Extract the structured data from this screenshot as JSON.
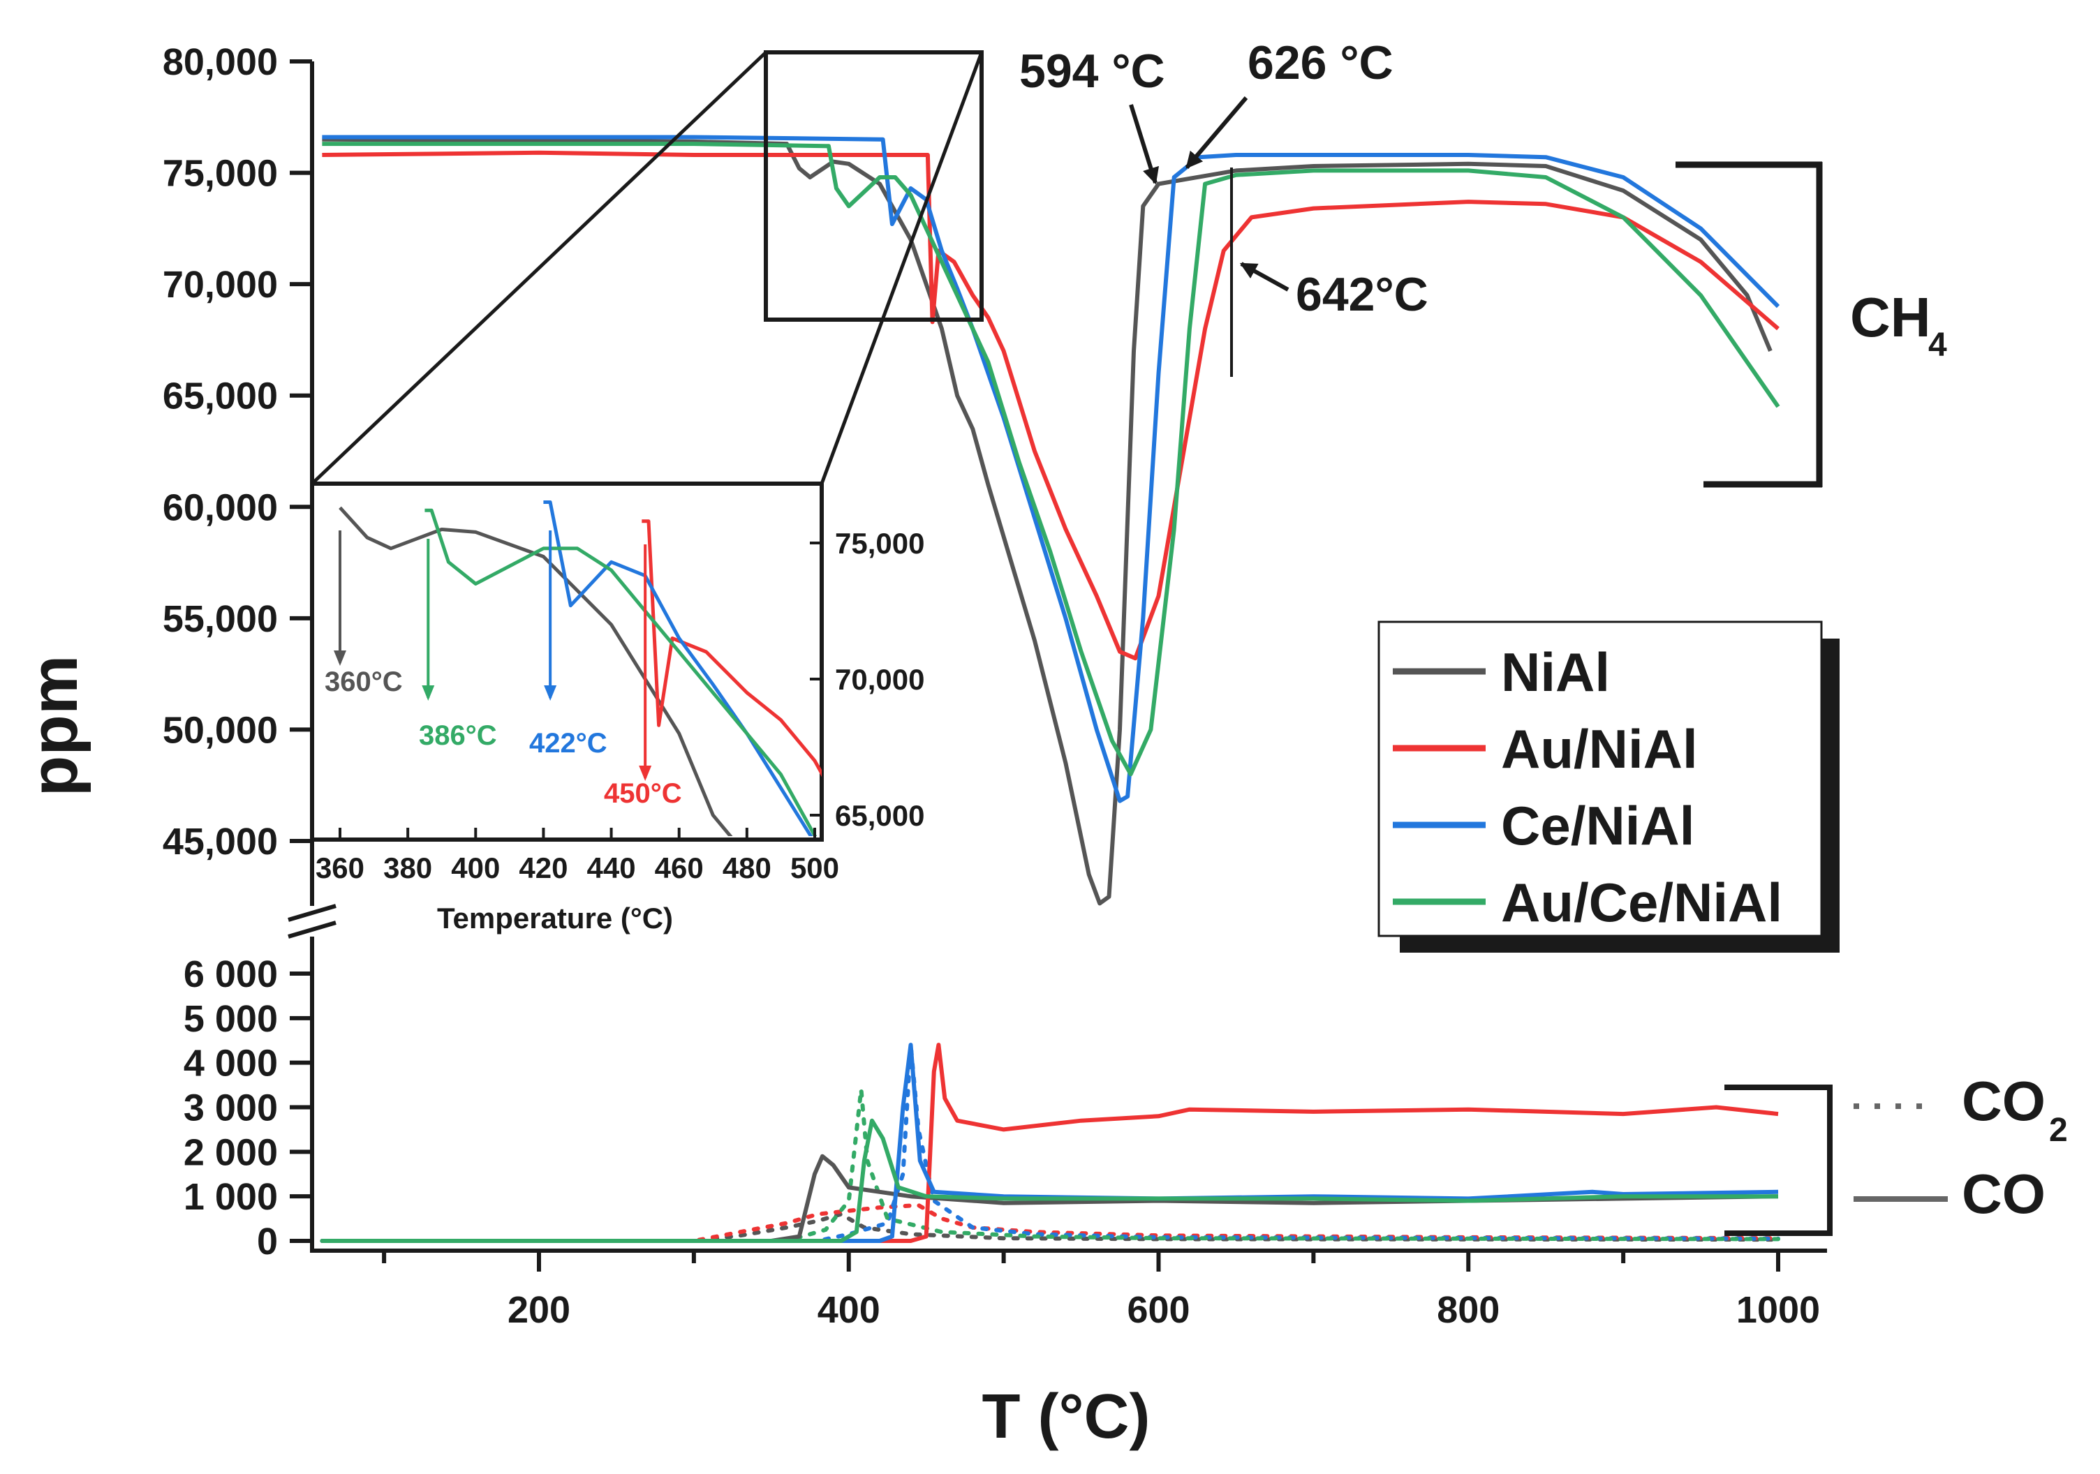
{
  "chart_data": {
    "type": "line",
    "xlabel": "T (°C)",
    "ylabel": "ppm",
    "xlim": [
      60,
      1000
    ],
    "x_ticks": [
      "200",
      "400",
      "600",
      "800",
      "1000"
    ],
    "top_panel": {
      "ylim": [
        45000,
        80000
      ],
      "y_ticks": [
        "45,000",
        "50,000",
        "55,000",
        "60,000",
        "65,000",
        "70,000",
        "75,000",
        "80,000"
      ],
      "label": "CH",
      "label_sub": "4"
    },
    "bottom_panel": {
      "ylim": [
        0,
        6500
      ],
      "y_ticks": [
        "0",
        "1 000",
        "2 000",
        "3 000",
        "4 000",
        "5 000",
        "6 000"
      ],
      "co2_label": "CO",
      "co2_sub": "2",
      "co_label": "CO"
    },
    "annotations": [
      "594 °C",
      "626 °C",
      "642°C"
    ],
    "legend": [
      "NiAl",
      "Au/NiAl",
      "Ce/NiAl",
      "Au/Ce/NiAl"
    ],
    "colors": {
      "NiAl": "#555555",
      "Au/NiAl": "#ee3333",
      "Ce/NiAl": "#2277dd",
      "Au/Ce/NiAl": "#33aa66"
    },
    "series_ch4": [
      {
        "name": "NiAl",
        "points": [
          [
            60,
            76500
          ],
          [
            300,
            76400
          ],
          [
            360,
            76300
          ],
          [
            368,
            75200
          ],
          [
            375,
            74800
          ],
          [
            390,
            75500
          ],
          [
            400,
            75400
          ],
          [
            420,
            74500
          ],
          [
            440,
            72000
          ],
          [
            460,
            68000
          ],
          [
            470,
            65000
          ],
          [
            480,
            63500
          ],
          [
            490,
            61000
          ],
          [
            520,
            54000
          ],
          [
            540,
            48500
          ],
          [
            555,
            43500
          ],
          [
            562,
            42200
          ],
          [
            568,
            42500
          ],
          [
            575,
            50000
          ],
          [
            584,
            67000
          ],
          [
            590,
            73500
          ],
          [
            600,
            74500
          ],
          [
            650,
            75100
          ],
          [
            700,
            75300
          ],
          [
            800,
            75400
          ],
          [
            850,
            75300
          ],
          [
            900,
            74200
          ],
          [
            950,
            72000
          ],
          [
            980,
            69500
          ],
          [
            995,
            67000
          ]
        ]
      },
      {
        "name": "Au/NiAl",
        "points": [
          [
            60,
            75800
          ],
          [
            200,
            75900
          ],
          [
            300,
            75800
          ],
          [
            449,
            75800
          ],
          [
            451,
            75800
          ],
          [
            454,
            68300
          ],
          [
            458,
            71500
          ],
          [
            468,
            71000
          ],
          [
            480,
            69500
          ],
          [
            490,
            68500
          ],
          [
            500,
            67000
          ],
          [
            520,
            62500
          ],
          [
            540,
            59000
          ],
          [
            560,
            56000
          ],
          [
            575,
            53500
          ],
          [
            585,
            53200
          ],
          [
            600,
            56000
          ],
          [
            615,
            62000
          ],
          [
            630,
            68000
          ],
          [
            642,
            71500
          ],
          [
            660,
            73000
          ],
          [
            700,
            73400
          ],
          [
            800,
            73700
          ],
          [
            850,
            73600
          ],
          [
            900,
            73000
          ],
          [
            950,
            71000
          ],
          [
            1000,
            68000
          ]
        ]
      },
      {
        "name": "Ce/NiAl",
        "points": [
          [
            60,
            76600
          ],
          [
            300,
            76600
          ],
          [
            420,
            76500
          ],
          [
            422,
            76500
          ],
          [
            428,
            72700
          ],
          [
            440,
            74300
          ],
          [
            450,
            73800
          ],
          [
            460,
            71500
          ],
          [
            470,
            69800
          ],
          [
            480,
            68000
          ],
          [
            500,
            64000
          ],
          [
            520,
            59500
          ],
          [
            540,
            55000
          ],
          [
            560,
            50000
          ],
          [
            575,
            46800
          ],
          [
            580,
            47000
          ],
          [
            590,
            55000
          ],
          [
            600,
            66000
          ],
          [
            610,
            74800
          ],
          [
            626,
            75700
          ],
          [
            650,
            75800
          ],
          [
            700,
            75800
          ],
          [
            800,
            75800
          ],
          [
            850,
            75700
          ],
          [
            900,
            74800
          ],
          [
            950,
            72500
          ],
          [
            1000,
            69000
          ]
        ]
      },
      {
        "name": "Au/Ce/NiAl",
        "points": [
          [
            60,
            76300
          ],
          [
            300,
            76300
          ],
          [
            385,
            76200
          ],
          [
            387,
            76200
          ],
          [
            392,
            74300
          ],
          [
            400,
            73500
          ],
          [
            420,
            74800
          ],
          [
            430,
            74800
          ],
          [
            440,
            74000
          ],
          [
            450,
            72500
          ],
          [
            470,
            69500
          ],
          [
            490,
            66500
          ],
          [
            510,
            62000
          ],
          [
            530,
            58000
          ],
          [
            550,
            53500
          ],
          [
            570,
            49500
          ],
          [
            582,
            48000
          ],
          [
            595,
            50000
          ],
          [
            610,
            59000
          ],
          [
            620,
            68000
          ],
          [
            630,
            74500
          ],
          [
            650,
            74900
          ],
          [
            700,
            75100
          ],
          [
            800,
            75100
          ],
          [
            850,
            74800
          ],
          [
            900,
            73000
          ],
          [
            950,
            69500
          ],
          [
            1000,
            64500
          ]
        ]
      }
    ],
    "series_co": [
      {
        "name": "NiAl",
        "points": [
          [
            60,
            0
          ],
          [
            350,
            0
          ],
          [
            368,
            100
          ],
          [
            378,
            1500
          ],
          [
            383,
            1900
          ],
          [
            390,
            1700
          ],
          [
            400,
            1200
          ],
          [
            440,
            1000
          ],
          [
            500,
            850
          ],
          [
            600,
            900
          ],
          [
            700,
            850
          ],
          [
            800,
            900
          ],
          [
            900,
            950
          ],
          [
            1000,
            1000
          ]
        ]
      },
      {
        "name": "Au/NiAl",
        "points": [
          [
            60,
            0
          ],
          [
            440,
            0
          ],
          [
            450,
            100
          ],
          [
            455,
            3800
          ],
          [
            458,
            4400
          ],
          [
            462,
            3200
          ],
          [
            470,
            2700
          ],
          [
            500,
            2500
          ],
          [
            550,
            2700
          ],
          [
            600,
            2800
          ],
          [
            620,
            2950
          ],
          [
            700,
            2900
          ],
          [
            800,
            2950
          ],
          [
            900,
            2850
          ],
          [
            960,
            3000
          ],
          [
            1000,
            2850
          ]
        ]
      },
      {
        "name": "Ce/NiAl",
        "points": [
          [
            60,
            0
          ],
          [
            420,
            0
          ],
          [
            428,
            100
          ],
          [
            435,
            3000
          ],
          [
            440,
            4400
          ],
          [
            446,
            1800
          ],
          [
            455,
            1100
          ],
          [
            500,
            1000
          ],
          [
            600,
            950
          ],
          [
            700,
            1000
          ],
          [
            800,
            950
          ],
          [
            880,
            1100
          ],
          [
            900,
            1050
          ],
          [
            1000,
            1100
          ]
        ]
      },
      {
        "name": "Au/Ce/NiAl",
        "points": [
          [
            60,
            0
          ],
          [
            395,
            0
          ],
          [
            405,
            200
          ],
          [
            410,
            1800
          ],
          [
            415,
            2700
          ],
          [
            422,
            2300
          ],
          [
            432,
            1200
          ],
          [
            450,
            1000
          ],
          [
            500,
            950
          ],
          [
            600,
            950
          ],
          [
            700,
            950
          ],
          [
            800,
            900
          ],
          [
            900,
            1000
          ],
          [
            1000,
            1000
          ]
        ]
      }
    ],
    "series_co2": [
      {
        "name": "NiAl",
        "points": [
          [
            60,
            0
          ],
          [
            300,
            0
          ],
          [
            330,
            120
          ],
          [
            360,
            300
          ],
          [
            380,
            450
          ],
          [
            395,
            600
          ],
          [
            410,
            300
          ],
          [
            440,
            150
          ],
          [
            500,
            60
          ],
          [
            600,
            40
          ],
          [
            1000,
            30
          ]
        ]
      },
      {
        "name": "Au/NiAl",
        "points": [
          [
            60,
            0
          ],
          [
            300,
            0
          ],
          [
            330,
            200
          ],
          [
            360,
            400
          ],
          [
            380,
            600
          ],
          [
            420,
            750
          ],
          [
            445,
            800
          ],
          [
            460,
            500
          ],
          [
            480,
            300
          ],
          [
            520,
            200
          ],
          [
            600,
            120
          ],
          [
            800,
            80
          ],
          [
            1000,
            60
          ]
        ]
      },
      {
        "name": "Ce/NiAl",
        "points": [
          [
            60,
            0
          ],
          [
            380,
            0
          ],
          [
            400,
            150
          ],
          [
            425,
            400
          ],
          [
            435,
            1500
          ],
          [
            440,
            4400
          ],
          [
            445,
            2500
          ],
          [
            455,
            900
          ],
          [
            480,
            300
          ],
          [
            520,
            150
          ],
          [
            600,
            80
          ],
          [
            1000,
            50
          ]
        ]
      },
      {
        "name": "Au/Ce/NiAl",
        "points": [
          [
            60,
            0
          ],
          [
            360,
            0
          ],
          [
            385,
            250
          ],
          [
            400,
            900
          ],
          [
            408,
            3400
          ],
          [
            412,
            1800
          ],
          [
            425,
            500
          ],
          [
            460,
            200
          ],
          [
            520,
            100
          ],
          [
            600,
            60
          ],
          [
            1000,
            40
          ]
        ]
      }
    ],
    "inset": {
      "xlabel": "Temperature (°C)",
      "xlim": [
        350,
        500
      ],
      "ylim": [
        64600,
        76800
      ],
      "x_ticks": [
        "360",
        "380",
        "400",
        "420",
        "440",
        "460",
        "480",
        "500"
      ],
      "y_ticks": [
        "65,000",
        "70,000",
        "75,000"
      ],
      "callouts": [
        {
          "label": "360°C",
          "x": 360,
          "series": "NiAl"
        },
        {
          "label": "386°C",
          "x": 386,
          "series": "Au/Ce/NiAl"
        },
        {
          "label": "422°C",
          "x": 422,
          "series": "Ce/NiAl"
        },
        {
          "label": "450°C",
          "x": 450,
          "series": "Au/NiAl"
        }
      ]
    }
  }
}
